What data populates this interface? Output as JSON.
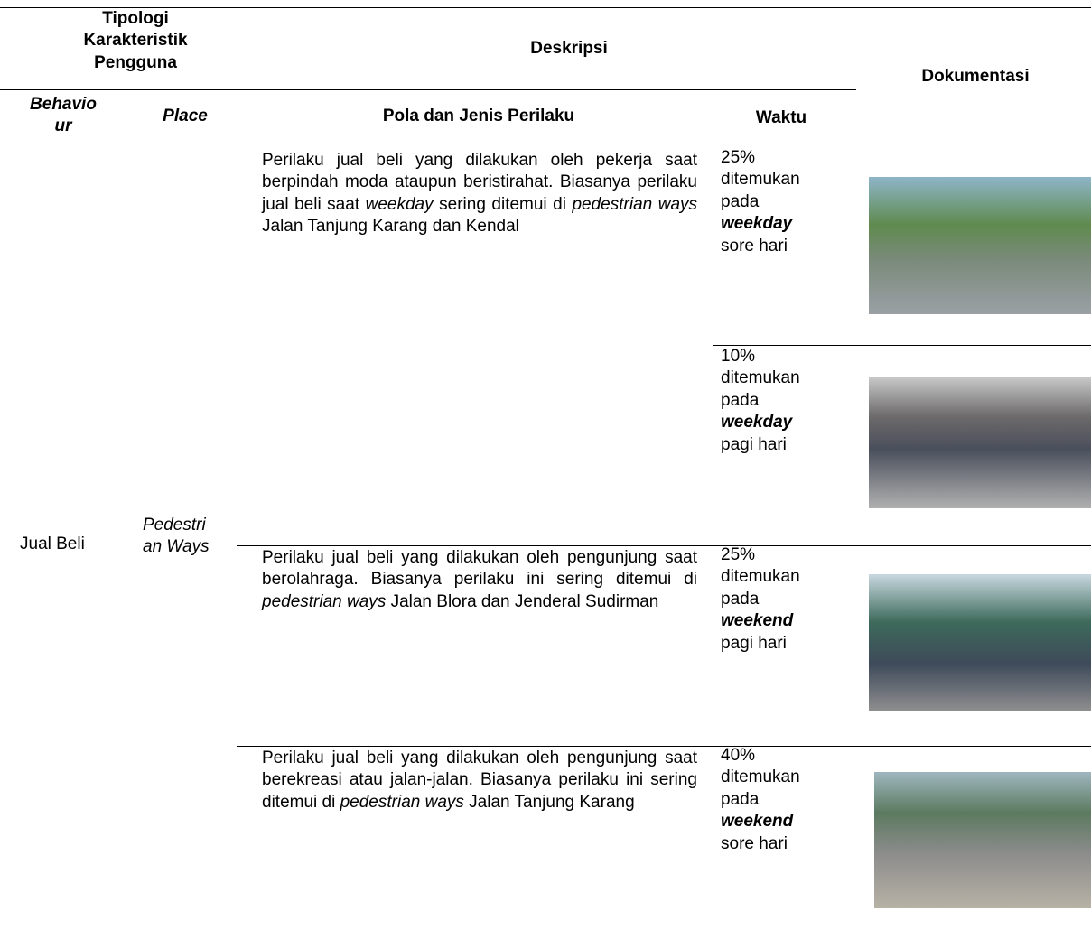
{
  "table": {
    "header": {
      "group": [
        "Tipologi",
        "Karakteristik",
        "Pengguna"
      ],
      "deskripsi": "Deskripsi",
      "dokumentasi": "Dokumentasi",
      "behaviour": [
        "Behavio",
        "ur"
      ],
      "place": "Place",
      "pola": "Pola dan Jenis Perilaku",
      "waktu": "Waktu"
    },
    "behaviour": "Jual Beli",
    "place": [
      "Pedestri",
      "an Ways"
    ],
    "entries": [
      {
        "description": [
          "Perilaku jual beli yang dilakukan oleh pekerja saat berpindah moda ataupun beristirahat. Biasanya perilaku jual beli saat ",
          "weekday",
          " sering ditemui di ",
          "pedestrian ways",
          " Jalan Tanjung Karang dan Kendal"
        ],
        "waktu": [
          "25%",
          "ditemukan",
          "pada",
          "weekday",
          "sore hari"
        ]
      },
      {
        "waktu": [
          "10%",
          "ditemukan",
          "pada",
          "weekday",
          "pagi hari"
        ]
      },
      {
        "description": [
          "Perilaku jual beli yang dilakukan oleh pengunjung saat berolahraga. Biasanya perilaku ini sering ditemui di ",
          "pedestrian ways",
          " Jalan Blora dan Jenderal Sudirman"
        ],
        "waktu": [
          "25%",
          "ditemukan",
          "pada",
          "weekend",
          "pagi hari"
        ]
      },
      {
        "description": [
          "Perilaku jual beli yang dilakukan oleh pengunjung saat berekreasi atau jalan-jalan. Biasanya perilaku ini sering ditemui di ",
          "pedestrian ways",
          " Jalan Tanjung Karang"
        ],
        "waktu": [
          "40%",
          "ditemukan",
          "pada",
          "weekend",
          "sore hari"
        ]
      }
    ]
  }
}
